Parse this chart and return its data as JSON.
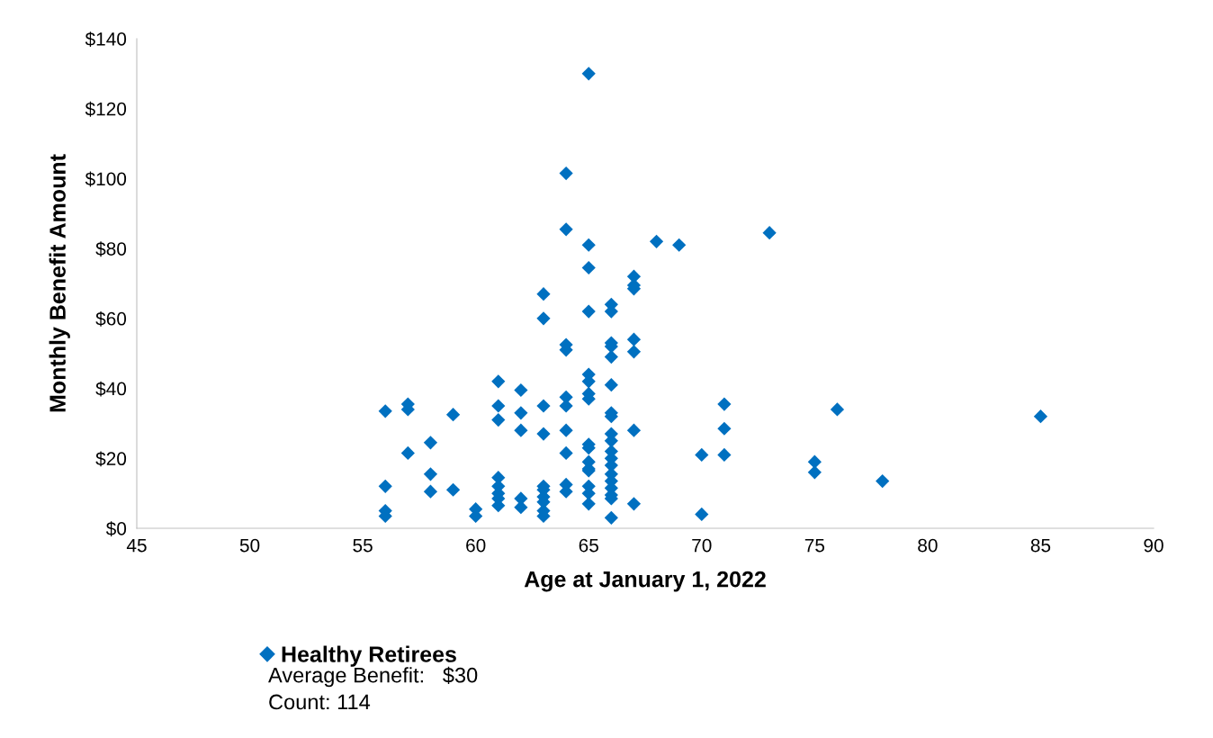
{
  "chart_data": {
    "type": "scatter",
    "xlabel": "Age at January 1, 2022",
    "ylabel": "Monthly Benefit Amount",
    "xlim": [
      45,
      90
    ],
    "xticks": [
      45,
      50,
      55,
      60,
      65,
      70,
      75,
      80,
      85,
      90
    ],
    "ylim": [
      0,
      140
    ],
    "yticks": [
      {
        "value": 0,
        "label": "$0"
      },
      {
        "value": 20,
        "label": "$20"
      },
      {
        "value": 40,
        "label": "$40"
      },
      {
        "value": 60,
        "label": "$60"
      },
      {
        "value": 80,
        "label": "$80"
      },
      {
        "value": 100,
        "label": "$100"
      },
      {
        "value": 120,
        "label": "$120"
      },
      {
        "value": 140,
        "label": "$140"
      }
    ],
    "grid": false,
    "legend": "bottom",
    "marker": "diamond",
    "annotations": [
      "Average Benefit:   $30",
      "Count: 114"
    ],
    "series": [
      {
        "name": "Healthy Retirees",
        "color": "#0070c0",
        "x": [
          56,
          56,
          56,
          56,
          57,
          57,
          57,
          58,
          58,
          58,
          59,
          59,
          60,
          60,
          61,
          61,
          61,
          61,
          61,
          61,
          61,
          61,
          62,
          62,
          62,
          62,
          62,
          63,
          63,
          63,
          63,
          63,
          63,
          63,
          63,
          63,
          63,
          64,
          64,
          64,
          64,
          64,
          64,
          64,
          64,
          64,
          64,
          65,
          65,
          65,
          65,
          65,
          65,
          65,
          65,
          65,
          65,
          65,
          65,
          65,
          65,
          65,
          65,
          66,
          66,
          66,
          66,
          66,
          66,
          66,
          66,
          66,
          66,
          66,
          66,
          66,
          66,
          66,
          66,
          66,
          66,
          66,
          67,
          67,
          67,
          67,
          67,
          67,
          67,
          68,
          69,
          70,
          70,
          71,
          71,
          71,
          73,
          75,
          75,
          76,
          78,
          85
        ],
        "values": [
          33.5,
          12,
          5,
          3.5,
          35.5,
          34,
          21.5,
          24.5,
          15.5,
          10.5,
          32.5,
          11,
          5.5,
          3.5,
          42,
          35,
          31,
          14.5,
          12,
          10,
          8.5,
          6.5,
          39.5,
          33,
          28,
          8.5,
          6,
          67,
          60,
          35,
          27,
          12,
          11,
          9,
          7.5,
          5,
          3.5,
          101.5,
          85.5,
          52.5,
          51,
          37.5,
          35,
          28,
          21.5,
          12.5,
          10.5,
          130,
          81,
          74.5,
          62,
          44,
          42,
          38.5,
          37,
          24,
          23,
          19,
          17,
          16.5,
          12,
          10,
          7,
          64,
          62,
          53,
          52,
          49,
          41,
          33,
          32,
          27,
          25,
          22,
          20,
          18,
          15.5,
          13.5,
          11.5,
          9.5,
          8.5,
          3,
          72,
          69.5,
          68.5,
          54,
          50.5,
          28,
          7,
          82,
          81,
          21,
          4,
          35.5,
          28.5,
          21,
          84.5,
          19,
          16,
          34,
          13.5,
          32
        ]
      }
    ]
  }
}
